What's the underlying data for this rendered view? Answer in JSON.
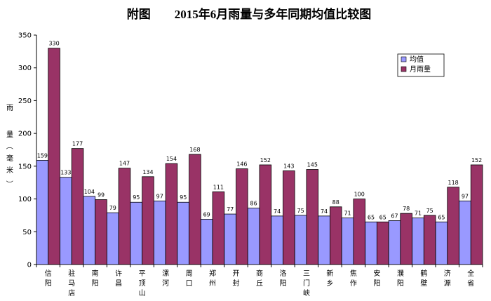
{
  "chart_data": {
    "type": "bar",
    "title": "附图　　2015年6月雨量与多年同期均值比较图",
    "ylabel": "雨量（毫米）",
    "ylim": [
      0,
      350
    ],
    "yticks": [
      0,
      50,
      100,
      150,
      200,
      250,
      300,
      350
    ],
    "grid": false,
    "legend_position": "top-right",
    "categories": [
      "信阳",
      "驻马店",
      "南阳",
      "许昌",
      "平顶山",
      "漯河",
      "周口",
      "郑州",
      "开封",
      "商丘",
      "洛阳",
      "三门峡",
      "新乡",
      "焦作",
      "安阳",
      "濮阳",
      "鹤壁",
      "济源",
      "全省"
    ],
    "series": [
      {
        "name": "均值",
        "color": "#9999ff",
        "values": [
          159,
          133,
          104,
          79,
          95,
          97,
          95,
          69,
          77,
          86,
          74,
          75,
          74,
          71,
          65,
          67,
          71,
          65,
          97
        ]
      },
      {
        "name": "月雨量",
        "color": "#993366",
        "values": [
          330,
          177,
          99,
          147,
          134,
          154,
          168,
          111,
          146,
          152,
          143,
          145,
          88,
          100,
          65,
          78,
          75,
          118,
          152
        ]
      }
    ]
  }
}
